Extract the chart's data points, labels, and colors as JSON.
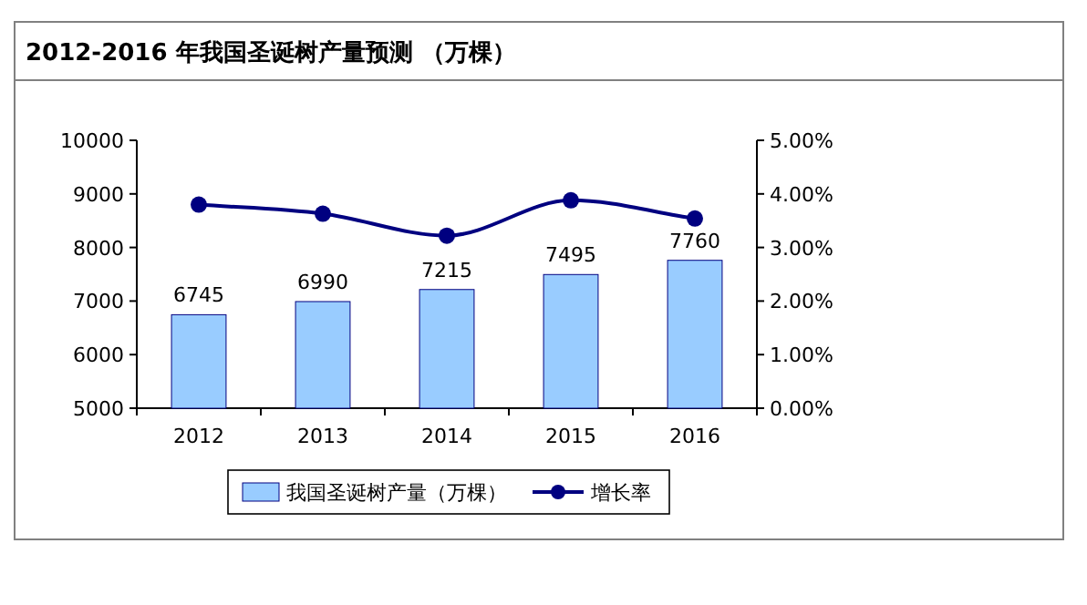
{
  "chart_data": {
    "type": "bar",
    "title": "2012-2016 年我国圣诞树产量预测 （万棵）",
    "categories": [
      "2012",
      "2013",
      "2014",
      "2015",
      "2016"
    ],
    "series": [
      {
        "name": "我国圣诞树产量（万棵）",
        "color": "#99ccff",
        "values": [
          6745,
          6990,
          7215,
          7495,
          7760
        ],
        "value_labels": [
          "6745",
          "6990",
          "7215",
          "7495",
          "7760"
        ]
      },
      {
        "type": "line",
        "name": "增长率",
        "color": "#000080",
        "axis": "y2",
        "marker": "circle",
        "values": [
          3.8,
          3.63,
          3.22,
          3.88,
          3.54
        ]
      }
    ],
    "ylim": [
      5000,
      10000
    ],
    "yticks": [
      5000,
      6000,
      7000,
      8000,
      9000,
      10000
    ],
    "y2lim": [
      0,
      5
    ],
    "y2ticks": [
      {
        "value": 0,
        "label": "0.00%"
      },
      {
        "value": 1,
        "label": "1.00%"
      },
      {
        "value": 2,
        "label": "2.00%"
      },
      {
        "value": 3,
        "label": "3.00%"
      },
      {
        "value": 4,
        "label": "4.00%"
      },
      {
        "value": 5,
        "label": "5.00%"
      }
    ],
    "legend": "bottom"
  }
}
